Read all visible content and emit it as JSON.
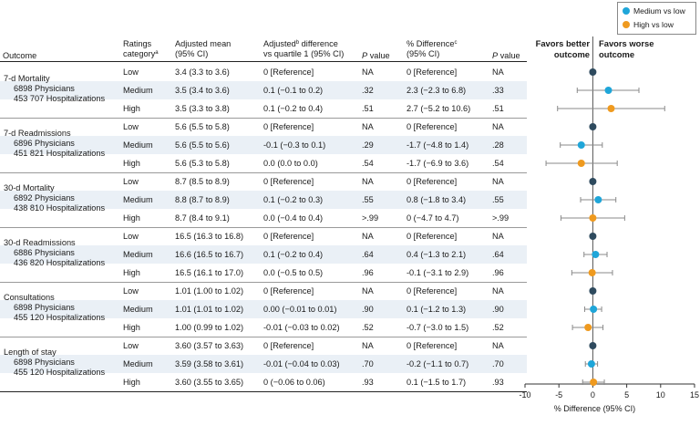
{
  "headers": {
    "outcome": "Outcome",
    "ratings_line1": "Ratings",
    "ratings_line2": "category",
    "ratings_sup": "a",
    "adj_mean_line1": "Adjusted mean",
    "adj_mean_line2": "(95% CI)",
    "adj_diff_line1_a": "Adjusted",
    "adj_diff_sup": "b",
    "adj_diff_line1_b": " difference",
    "adj_diff_line2": "vs quartile 1 (95% CI)",
    "pvalue1_italic": "P",
    "pvalue1_rest": " value",
    "pct_diff_line1": "% Difference",
    "pct_diff_sup": "c",
    "pct_diff_line2": "(95% CI)",
    "pvalue2_italic": "P",
    "pvalue2_rest": " value"
  },
  "plot_headers": {
    "left_line1": "Favors better",
    "left_line2": "outcome",
    "right_line1": "Favors worse",
    "right_line2": "outcome"
  },
  "legend": {
    "medium_label": "Medium vs low",
    "high_label": "High vs low",
    "colors": {
      "low": "#2e4a5e",
      "medium": "#1fa6d9",
      "high": "#ef9a1f"
    }
  },
  "groups": [
    {
      "name": "7-d Mortality",
      "physicians": "6898 Physicians",
      "hospitalizations": "453 707 Hospitalizations",
      "rows": [
        {
          "category": "Low",
          "mean": "3.4 (3.3 to 3.6)",
          "diff": "0 [Reference]",
          "p1": "NA",
          "pct": "0 [Reference]",
          "p2": "NA"
        },
        {
          "category": "Medium",
          "mean": "3.5 (3.4 to 3.6)",
          "diff": "0.1 (−0.1 to 0.2)",
          "p1": ".32",
          "pct": "2.3 (−2.3 to 6.8)",
          "p2": ".33"
        },
        {
          "category": "High",
          "mean": "3.5 (3.3 to 3.8)",
          "diff": "0.1 (−0.2 to 0.4)",
          "p1": ".51",
          "pct": "2.7 (−5.2 to 10.6)",
          "p2": ".51"
        }
      ]
    },
    {
      "name": "7-d Readmissions",
      "physicians": "6896 Physicians",
      "hospitalizations": "451 821 Hospitalizations",
      "rows": [
        {
          "category": "Low",
          "mean": "5.6 (5.5 to 5.8)",
          "diff": "0 [Reference]",
          "p1": "NA",
          "pct": "0 [Reference]",
          "p2": "NA"
        },
        {
          "category": "Medium",
          "mean": "5.6 (5.5 to 5.6)",
          "diff": "-0.1 (−0.3 to 0.1)",
          "p1": ".29",
          "pct": "-1.7 (−4.8 to 1.4)",
          "p2": ".28"
        },
        {
          "category": "High",
          "mean": "5.6 (5.3 to 5.8)",
          "diff": "0.0 (0.0 to 0.0)",
          "p1": ".54",
          "pct": "-1.7 (−6.9 to 3.6)",
          "p2": ".54"
        }
      ]
    },
    {
      "name": "30-d Mortality",
      "physicians": "6892 Physicians",
      "hospitalizations": "438 810 Hospitalizations",
      "rows": [
        {
          "category": "Low",
          "mean": "8.7 (8.5 to 8.9)",
          "diff": "0 [Reference]",
          "p1": "NA",
          "pct": "0 [Reference]",
          "p2": "NA"
        },
        {
          "category": "Medium",
          "mean": "8.8 (8.7 to 8.9)",
          "diff": "0.1 (−0.2 to 0.3)",
          "p1": ".55",
          "pct": "0.8 (−1.8 to 3.4)",
          "p2": ".55"
        },
        {
          "category": "High",
          "mean": "8.7 (8.4 to 9.1)",
          "diff": "0.0 (−0.4 to 0.4)",
          "p1": ">.99",
          "pct": "0 (−4.7 to 4.7)",
          "p2": ">.99"
        }
      ]
    },
    {
      "name": "30-d Readmissions",
      "physicians": "6886 Physicians",
      "hospitalizations": "436 820 Hospitalizations",
      "rows": [
        {
          "category": "Low",
          "mean": "16.5 (16.3 to 16.8)",
          "diff": "0 [Reference]",
          "p1": "NA",
          "pct": "0 [Reference]",
          "p2": "NA"
        },
        {
          "category": "Medium",
          "mean": "16.6 (16.5 to 16.7)",
          "diff": "0.1 (−0.2 to 0.4)",
          "p1": ".64",
          "pct": "0.4 (−1.3 to 2.1)",
          "p2": ".64"
        },
        {
          "category": "High",
          "mean": "16.5 (16.1 to 17.0)",
          "diff": "0.0 (−0.5 to 0.5)",
          "p1": ".96",
          "pct": "-0.1 (−3.1 to 2.9)",
          "p2": ".96"
        }
      ]
    },
    {
      "name": "Consultations",
      "physicians": "6898 Physicians",
      "hospitalizations": "455 120 Hospitalizations",
      "rows": [
        {
          "category": "Low",
          "mean": "1.01 (1.00 to 1.02)",
          "diff": "0 [Reference]",
          "p1": "NA",
          "pct": "0 [Reference]",
          "p2": "NA"
        },
        {
          "category": "Medium",
          "mean": "1.01 (1.01 to 1.02)",
          "diff": "0.00 (−0.01 to 0.01)",
          "p1": ".90",
          "pct": "0.1 (−1.2 to 1.3)",
          "p2": ".90"
        },
        {
          "category": "High",
          "mean": "1.00 (0.99 to 1.02)",
          "diff": "-0.01 (−0.03 to 0.02)",
          "p1": ".52",
          "pct": "-0.7 (−3.0 to 1.5)",
          "p2": ".52"
        }
      ]
    },
    {
      "name": "Length of stay",
      "physicians": "6898 Physicians",
      "hospitalizations": "455 120 Hospitalizations",
      "rows": [
        {
          "category": "Low",
          "mean": "3.60 (3.57 to 3.63)",
          "diff": "0 [Reference]",
          "p1": "NA",
          "pct": "0 [Reference]",
          "p2": "NA"
        },
        {
          "category": "Medium",
          "mean": "3.59 (3.58 to 3.61)",
          "diff": "-0.01 (−0.04 to 0.03)",
          "p1": ".70",
          "pct": "-0.2 (−1.1 to 0.7)",
          "p2": ".70"
        },
        {
          "category": "High",
          "mean": "3.60 (3.55 to 3.65)",
          "diff": "0 (−0.06 to 0.06)",
          "p1": ".93",
          "pct": "0.1 (−1.5 to 1.7)",
          "p2": ".93"
        }
      ]
    }
  ],
  "chart_data": {
    "type": "scatter",
    "subtype": "forest-plot",
    "xlabel": "% Difference (95% CI)",
    "xlim": [
      -10,
      15
    ],
    "xticks": [
      -10,
      -5,
      0,
      5,
      10,
      15
    ],
    "reference_line": 0,
    "grid": false,
    "legend_position": "top-right",
    "series": [
      {
        "name": "Medium vs low",
        "color": "#1fa6d9",
        "points": [
          {
            "y": "7-d Mortality",
            "x": 2.3,
            "lo": -2.3,
            "hi": 6.8
          },
          {
            "y": "7-d Readmissions",
            "x": -1.7,
            "lo": -4.8,
            "hi": 1.4
          },
          {
            "y": "30-d Mortality",
            "x": 0.8,
            "lo": -1.8,
            "hi": 3.4
          },
          {
            "y": "30-d Readmissions",
            "x": 0.4,
            "lo": -1.3,
            "hi": 2.1
          },
          {
            "y": "Consultations",
            "x": 0.1,
            "lo": -1.2,
            "hi": 1.3
          },
          {
            "y": "Length of stay",
            "x": -0.2,
            "lo": -1.1,
            "hi": 0.7
          }
        ]
      },
      {
        "name": "High vs low",
        "color": "#ef9a1f",
        "points": [
          {
            "y": "7-d Mortality",
            "x": 2.7,
            "lo": -5.2,
            "hi": 10.6
          },
          {
            "y": "7-d Readmissions",
            "x": -1.7,
            "lo": -6.9,
            "hi": 3.6
          },
          {
            "y": "30-d Mortality",
            "x": 0,
            "lo": -4.7,
            "hi": 4.7
          },
          {
            "y": "30-d Readmissions",
            "x": -0.1,
            "lo": -3.1,
            "hi": 2.9
          },
          {
            "y": "Consultations",
            "x": -0.7,
            "lo": -3.0,
            "hi": 1.5
          },
          {
            "y": "Length of stay",
            "x": 0.1,
            "lo": -1.5,
            "hi": 1.7
          }
        ]
      },
      {
        "reference": true,
        "color": "#2e4a5e",
        "points": [
          {
            "y": "7-d Mortality",
            "x": 0
          },
          {
            "y": "7-d Readmissions",
            "x": 0
          },
          {
            "y": "30-d Mortality",
            "x": 0
          },
          {
            "y": "30-d Readmissions",
            "x": 0
          },
          {
            "y": "Consultations",
            "x": 0
          },
          {
            "y": "Length of stay",
            "x": 0
          }
        ]
      }
    ]
  }
}
